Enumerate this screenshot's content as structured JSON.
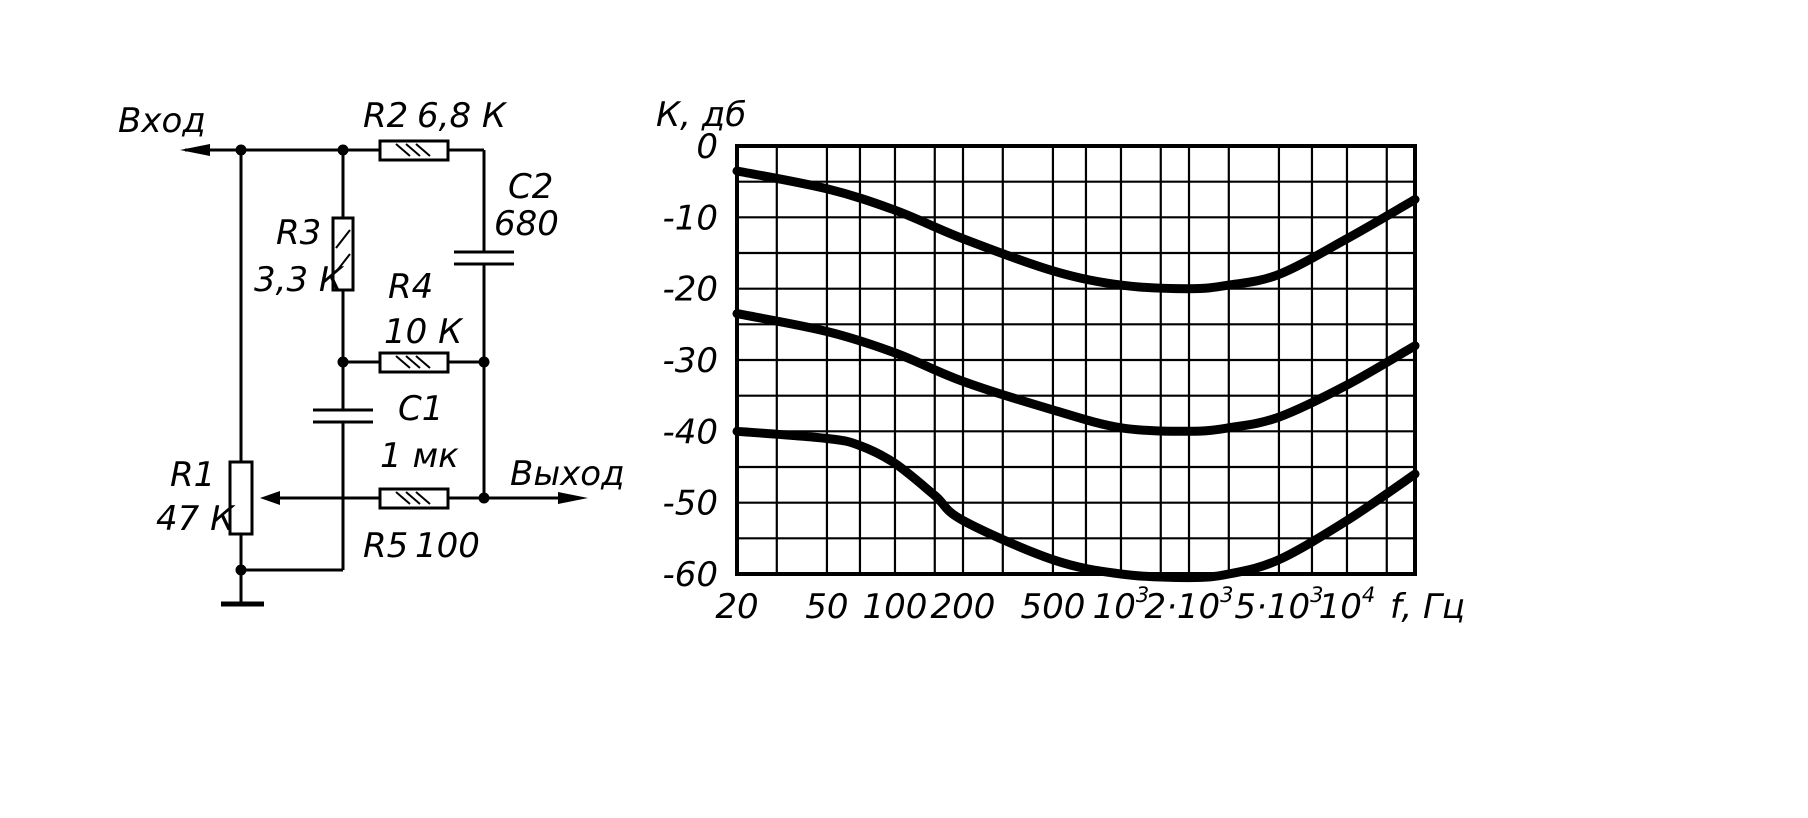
{
  "schematic": {
    "input_label": "Вход",
    "output_label": "Выход",
    "components": [
      {
        "id": "r1",
        "ref": "R1",
        "value": "47 К"
      },
      {
        "id": "r2",
        "ref": "R2",
        "value": "6,8 К"
      },
      {
        "id": "r3",
        "ref": "R3",
        "value": "3,3 К"
      },
      {
        "id": "r4",
        "ref": "R4",
        "value": "10 К"
      },
      {
        "id": "r5",
        "ref": "R5",
        "value": "100"
      },
      {
        "id": "c1",
        "ref": "C1",
        "value": "1 мк"
      },
      {
        "id": "c2",
        "ref": "C2",
        "value": "680"
      }
    ]
  },
  "chart_data": {
    "type": "line",
    "ylabel": "К, дб",
    "xlabel": "f, Гц",
    "x_scale": "log",
    "xlim": [
      20,
      20000
    ],
    "ylim": [
      -60,
      0
    ],
    "y_ticks": [
      "0",
      "-10",
      "-20",
      "-30",
      "-40",
      "-50",
      "-60"
    ],
    "x_ticks": [
      {
        "value": 20,
        "mantissa": "20",
        "exp": ""
      },
      {
        "value": 50,
        "mantissa": "50",
        "exp": ""
      },
      {
        "value": 100,
        "mantissa": "100",
        "exp": ""
      },
      {
        "value": 200,
        "mantissa": "200",
        "exp": ""
      },
      {
        "value": 500,
        "mantissa": "500",
        "exp": ""
      },
      {
        "value": 1000,
        "mantissa": "10",
        "exp": "3"
      },
      {
        "value": 2000,
        "mantissa": "2·10",
        "exp": "3"
      },
      {
        "value": 5000,
        "mantissa": "5·10",
        "exp": "3"
      },
      {
        "value": 10000,
        "mantissa": "10",
        "exp": "4"
      }
    ],
    "grid": true,
    "series": [
      {
        "x": [
          20,
          50,
          100,
          200,
          500,
          1000,
          2000,
          3000,
          5000,
          10000,
          20000
        ],
        "y": [
          -3.5,
          -6,
          -9,
          -13,
          -17.5,
          -19.5,
          -20,
          -19.5,
          -18,
          -13,
          -7.5
        ]
      },
      {
        "x": [
          20,
          50,
          100,
          200,
          500,
          1000,
          2000,
          3000,
          5000,
          10000,
          20000
        ],
        "y": [
          -23.5,
          -26,
          -29,
          -33,
          -37,
          -39.5,
          -40,
          -39.5,
          -38,
          -33.5,
          -28
        ]
      },
      {
        "x": [
          20,
          50,
          70,
          100,
          150,
          200,
          500,
          1000,
          2000,
          3000,
          5000,
          10000,
          20000
        ],
        "y": [
          -40,
          -41,
          -42,
          -44.5,
          -49,
          -52.5,
          -58,
          -60,
          -60.5,
          -60,
          -58,
          -52.5,
          -46
        ]
      }
    ]
  }
}
